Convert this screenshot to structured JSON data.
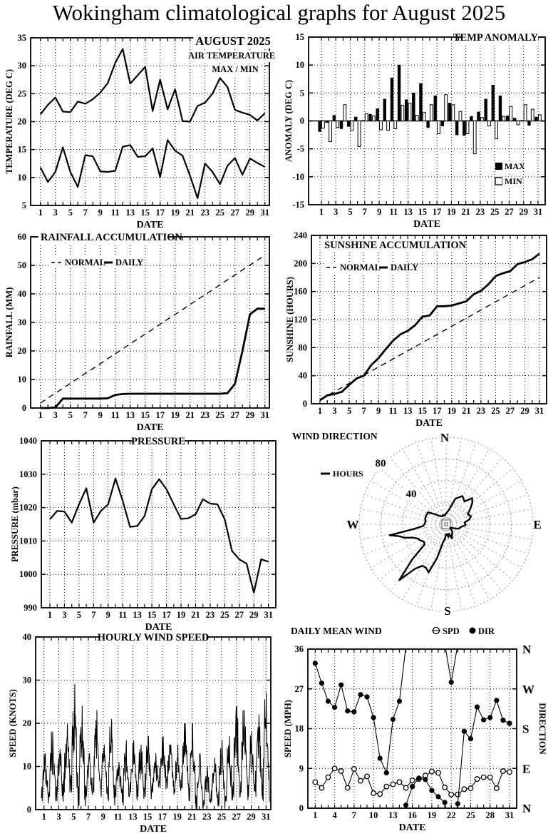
{
  "page_title": "Wokingham climatological graphs for August 2025",
  "chart_data": [
    {
      "id": "temp",
      "type": "line",
      "title": "AUGUST 2025",
      "subtitle": "AIR TEMPERATURE",
      "subtitle2": "MAX / MIN",
      "xlabel": "DATE",
      "ylabel": "TEMPERATURE (DEG C)",
      "ylim": [
        5,
        35
      ],
      "yticks": [
        5,
        10,
        15,
        20,
        25,
        30,
        35
      ],
      "xticks": [
        1,
        3,
        5,
        7,
        9,
        11,
        13,
        15,
        17,
        19,
        21,
        23,
        25,
        27,
        29,
        31
      ],
      "series": [
        {
          "name": "MAX",
          "style": "solid",
          "values": [
            21.3,
            23.0,
            24.3,
            21.8,
            21.7,
            23.6,
            23.2,
            24.0,
            25.2,
            26.9,
            30.5,
            33.0,
            26.8,
            28.3,
            29.8,
            21.9,
            27.5,
            22.2,
            25.8,
            20.1,
            20.0,
            22.8,
            23.4,
            25.0,
            27.8,
            26.2,
            22.1,
            21.6,
            21.2,
            20.2,
            21.5
          ]
        },
        {
          "name": "MIN",
          "style": "solid",
          "values": [
            11.8,
            9.2,
            11.0,
            15.4,
            11.0,
            8.3,
            14.0,
            13.8,
            11.1,
            11.0,
            11.2,
            15.5,
            15.8,
            13.7,
            13.8,
            15.2,
            10.1,
            16.7,
            14.8,
            13.9,
            10.3,
            6.3,
            12.5,
            11.0,
            8.8,
            12.1,
            13.5,
            10.5,
            13.4,
            12.6,
            11.9
          ]
        }
      ]
    },
    {
      "id": "anomaly",
      "type": "bar",
      "title": "TEMP ANOMALY",
      "xlabel": "DATE",
      "ylabel": "ANOMALY (DEG C)",
      "ylim": [
        -15,
        15
      ],
      "yticks": [
        -15,
        -10,
        -5,
        0,
        5,
        10,
        15
      ],
      "xticks": [
        1,
        3,
        5,
        7,
        9,
        11,
        13,
        15,
        17,
        19,
        21,
        23,
        25,
        27,
        29,
        31
      ],
      "legend": [
        {
          "label": "MAX",
          "fill": "black"
        },
        {
          "label": "MIN",
          "fill": "white"
        }
      ],
      "series": [
        {
          "name": "MAX",
          "values": [
            -1.9,
            -0.3,
            1.0,
            -1.4,
            -1.0,
            0.7,
            0.1,
            1.2,
            2.2,
            3.9,
            7.7,
            10.0,
            3.8,
            5.0,
            6.7,
            -1.2,
            4.5,
            -0.9,
            3.2,
            -2.5,
            -2.6,
            0.8,
            1.6,
            3.9,
            6.4,
            4.5,
            0.9,
            0.5,
            0.1,
            -0.8,
            0.7
          ]
        },
        {
          "name": "MIN",
          "values": [
            -1.3,
            -3.7,
            -1.2,
            2.9,
            -1.7,
            -4.6,
            1.3,
            0.9,
            -1.6,
            -1.7,
            -1.4,
            2.8,
            3.2,
            1.0,
            1.5,
            2.9,
            -2.3,
            4.7,
            2.9,
            1.7,
            -2.3,
            -5.9,
            0.6,
            -0.9,
            -3.2,
            0.8,
            2.6,
            -0.7,
            2.9,
            2.1,
            1.1
          ]
        }
      ]
    },
    {
      "id": "rainfall",
      "type": "line",
      "title": "RAINFALL ACCUMULATION",
      "xlabel": "DATE",
      "ylabel": "RAINFALL (MM)",
      "ylim": [
        0,
        60
      ],
      "yticks": [
        0,
        10,
        20,
        30,
        40,
        50,
        60
      ],
      "xticks": [
        1,
        3,
        5,
        7,
        9,
        11,
        13,
        15,
        17,
        19,
        21,
        23,
        25,
        27,
        29,
        31
      ],
      "legend": [
        {
          "label": "NORMAL",
          "style": "dashed"
        },
        {
          "label": "DAILY",
          "style": "solid"
        }
      ],
      "series": [
        {
          "name": "NORMAL",
          "style": "dashed",
          "values": [
            1.7,
            3.5,
            5.2,
            6.9,
            8.6,
            10.4,
            12.1,
            13.8,
            15.5,
            17.3,
            19.0,
            20.7,
            22.5,
            24.2,
            25.9,
            27.6,
            29.4,
            31.1,
            32.8,
            34.5,
            36.3,
            38.0,
            39.7,
            41.4,
            43.2,
            44.9,
            46.6,
            48.4,
            50.1,
            51.8,
            53.5
          ]
        },
        {
          "name": "DAILY",
          "style": "solid",
          "width": 3,
          "values": [
            0,
            0,
            0.2,
            3.3,
            3.3,
            3.3,
            3.3,
            3.3,
            3.3,
            3.4,
            4.6,
            4.9,
            5.0,
            5.0,
            5.0,
            5.0,
            5.0,
            5.0,
            5.0,
            5.0,
            5.0,
            5.0,
            5.0,
            5.0,
            5.0,
            5.2,
            8.5,
            20.0,
            32.8,
            34.8,
            34.8
          ]
        }
      ]
    },
    {
      "id": "sunshine",
      "type": "line",
      "title": "SUNSHINE ACCUMULATION",
      "xlabel": "DATE",
      "ylabel": "SUNSHINE (HOURS)",
      "ylim": [
        0,
        240
      ],
      "yticks": [
        0,
        40,
        80,
        120,
        160,
        200,
        240
      ],
      "xticks": [
        1,
        3,
        5,
        7,
        9,
        11,
        13,
        15,
        17,
        19,
        21,
        23,
        25,
        27,
        29,
        31
      ],
      "legend": [
        {
          "label": "NORMAL",
          "style": "dashed"
        },
        {
          "label": "DAILY",
          "style": "solid"
        }
      ],
      "series": [
        {
          "name": "NORMAL",
          "style": "dashed",
          "values": [
            5.8,
            11.6,
            17.4,
            23.2,
            29.1,
            34.9,
            40.7,
            46.5,
            52.3,
            58.1,
            63.9,
            69.7,
            75.5,
            81.3,
            87.2,
            93.0,
            98.8,
            104.6,
            110.4,
            116.2,
            122.0,
            127.8,
            133.6,
            139.4,
            145.3,
            151.1,
            156.9,
            162.7,
            168.5,
            174.3,
            180.1
          ]
        },
        {
          "name": "DAILY",
          "style": "solid",
          "width": 3,
          "values": [
            5,
            12,
            14,
            17,
            27,
            36,
            40,
            55,
            65,
            78,
            90,
            99,
            104,
            112,
            124,
            126,
            139,
            139,
            140,
            143,
            146,
            156,
            161,
            170,
            182,
            186,
            189,
            199,
            202,
            206,
            214
          ]
        }
      ]
    },
    {
      "id": "pressure",
      "type": "line",
      "title": "PRESSURE",
      "xlabel": "DATE",
      "ylabel": "PRESSURE (mbar)",
      "ylim": [
        990,
        1040
      ],
      "yticks": [
        990,
        1000,
        1010,
        1020,
        1030,
        1040
      ],
      "xticks": [
        1,
        3,
        5,
        7,
        9,
        11,
        13,
        15,
        17,
        19,
        21,
        23,
        25,
        27,
        29,
        31
      ],
      "series": [
        {
          "name": "PRESSURE",
          "style": "solid",
          "values": [
            1016.5,
            1019.0,
            1018.8,
            1015.5,
            1021.0,
            1025.8,
            1015.5,
            1019.0,
            1021.0,
            1028.7,
            1022.0,
            1014.2,
            1014.5,
            1017.5,
            1025.5,
            1028.5,
            1025.5,
            1021.0,
            1016.6,
            1016.8,
            1018.0,
            1022.5,
            1021.2,
            1021.0,
            1016.5,
            1007.0,
            1004.5,
            1003.2,
            994.5,
            1004.5,
            1003.8
          ]
        }
      ]
    },
    {
      "id": "windrose",
      "type": "rose",
      "title": "WIND DIRECTION",
      "legend": [
        {
          "label": "HOURS",
          "style": "solid"
        }
      ],
      "rings": [
        20,
        40,
        60,
        80
      ],
      "ring_labels": [
        "40",
        "80"
      ],
      "compass": [
        "N",
        "E",
        "S",
        "W"
      ],
      "points_deg_hours": [
        [
          0,
          10
        ],
        [
          10,
          13
        ],
        [
          20,
          25
        ],
        [
          30,
          30
        ],
        [
          39,
          27
        ],
        [
          45,
          34
        ],
        [
          51,
          31
        ],
        [
          58,
          26
        ],
        [
          65,
          22
        ],
        [
          72,
          24
        ],
        [
          78,
          22
        ],
        [
          85,
          17
        ],
        [
          92,
          18
        ],
        [
          100,
          14
        ],
        [
          110,
          12
        ],
        [
          120,
          7
        ],
        [
          130,
          5
        ],
        [
          140,
          9
        ],
        [
          150,
          11
        ],
        [
          158,
          14
        ],
        [
          163,
          9
        ],
        [
          170,
          12
        ],
        [
          175,
          9
        ],
        [
          180,
          9
        ],
        [
          185,
          14
        ],
        [
          190,
          17
        ],
        [
          195,
          32
        ],
        [
          200,
          47
        ],
        [
          205,
          44
        ],
        [
          210,
          44
        ],
        [
          215,
          50
        ],
        [
          220,
          67
        ],
        [
          224,
          45
        ],
        [
          227,
          27
        ],
        [
          232,
          26
        ],
        [
          238,
          28
        ],
        [
          243,
          29
        ],
        [
          248,
          33
        ],
        [
          252,
          40
        ],
        [
          256,
          45
        ],
        [
          259,
          53
        ],
        [
          262,
          29
        ],
        [
          266,
          21
        ],
        [
          270,
          20
        ],
        [
          278,
          19
        ],
        [
          285,
          20
        ],
        [
          295,
          20
        ],
        [
          303,
          20
        ],
        [
          310,
          15
        ],
        [
          318,
          11
        ],
        [
          326,
          9
        ],
        [
          334,
          8
        ],
        [
          342,
          9
        ],
        [
          351,
          8
        ]
      ]
    },
    {
      "id": "hourly",
      "type": "hourly",
      "title": "HOURLY WIND SPEED",
      "xlabel": "DATE",
      "ylabel": "SPEED (KNOTS)",
      "ylim": [
        0,
        40
      ],
      "yticks": [
        0,
        10,
        20,
        30,
        40
      ],
      "xticks": [
        1,
        3,
        5,
        7,
        9,
        11,
        13,
        15,
        17,
        19,
        21,
        23,
        25,
        27,
        29,
        31
      ],
      "daily_max": [
        13,
        18,
        14,
        20,
        29,
        24,
        13,
        23,
        15,
        21,
        11,
        16,
        16,
        15,
        17,
        13,
        17,
        15,
        15,
        20,
        20,
        13,
        10,
        12,
        16,
        17,
        24,
        23,
        18,
        22,
        27
      ],
      "daily_min": [
        2,
        3,
        2,
        4,
        4,
        1,
        3,
        4,
        3,
        2,
        3,
        1,
        4,
        3,
        3,
        4,
        5,
        5,
        4,
        5,
        2,
        0,
        1,
        2,
        1,
        2,
        3,
        4,
        3,
        3,
        2
      ]
    },
    {
      "id": "dailywind",
      "type": "windline",
      "title": "DAILY MEAN WIND",
      "xlabel": "DATE",
      "ylabel_left": "SPEED (MPH)",
      "ylabel_right": "DIRECTION",
      "ylim": [
        0,
        36
      ],
      "yticks": [
        0,
        9,
        18,
        27,
        36
      ],
      "right_labels": [
        "N",
        "W",
        "S",
        "E",
        "N"
      ],
      "xticks": [
        1,
        4,
        7,
        10,
        13,
        16,
        19,
        22,
        25,
        28,
        31
      ],
      "legend": [
        {
          "label": "SPD",
          "marker": "open"
        },
        {
          "label": "DIR",
          "marker": "filled"
        }
      ],
      "spd": [
        5.9,
        4.6,
        7.0,
        9.0,
        8.4,
        4.6,
        8.9,
        6.2,
        7.2,
        3.4,
        3.2,
        4.9,
        5.4,
        5.9,
        4.6,
        6.3,
        6.6,
        7.4,
        8.3,
        8.0,
        4.7,
        3.1,
        3.1,
        4.3,
        4.5,
        6.6,
        7.0,
        7.0,
        4.5,
        8.4,
        8.2
      ],
      "dir": [
        32.8,
        28.3,
        24.2,
        22.8,
        27.9,
        22.0,
        21.8,
        25.7,
        25.2,
        20.5,
        11.3,
        8.0,
        20.1,
        24.2,
        0.7,
        4.9,
        6.8,
        6.5,
        4.0,
        2.6,
        1.3,
        28.5,
        1.0,
        17.4,
        15.7,
        22.9,
        20.0,
        20.5,
        24.4,
        19.9,
        19.2
      ]
    }
  ]
}
